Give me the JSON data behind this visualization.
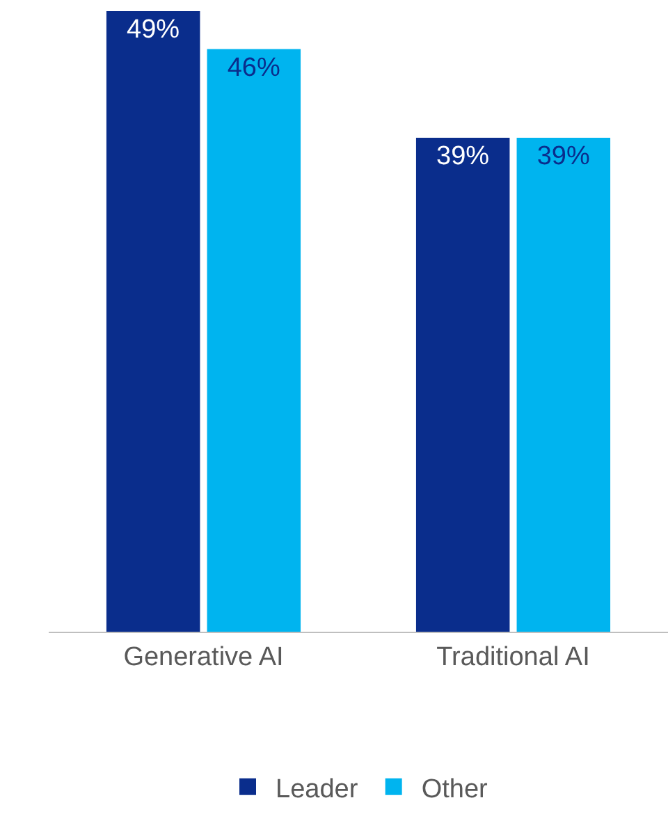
{
  "chart_data": {
    "type": "bar",
    "categories": [
      "Generative AI",
      "Traditional AI"
    ],
    "series": [
      {
        "name": "Leader",
        "color": "#0a2d8c",
        "values": [
          49,
          39
        ],
        "value_labels": [
          "49%",
          "39%"
        ]
      },
      {
        "name": "Other",
        "color": "#00b4ef",
        "values": [
          46,
          39
        ],
        "value_labels": [
          "46%",
          "39%"
        ]
      }
    ],
    "ylim": [
      0,
      49
    ],
    "legend": "bottom"
  }
}
